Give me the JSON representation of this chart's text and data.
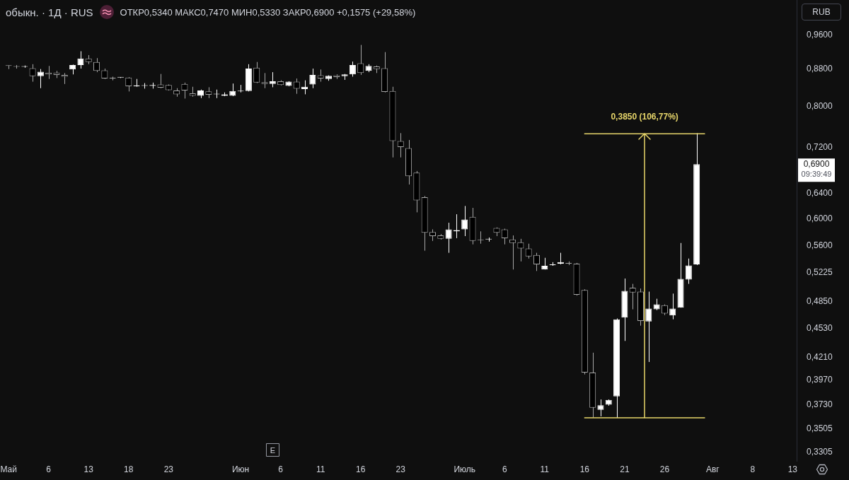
{
  "chart_data": {
    "type": "candlestick",
    "title": "обыкн. · 1Д · RUS",
    "subtitle": "ОТКР0,5340 МАКС0,7470 МИН0,5330 ЗАКР0,6900 +0,1575 (+29,58%)",
    "ylabel": "RUB",
    "categories": [
      "Май",
      null,
      null,
      null,
      null,
      "6",
      null,
      null,
      null,
      null,
      "13",
      null,
      null,
      null,
      null,
      "18",
      null,
      null,
      null,
      null,
      "23",
      null,
      null,
      null,
      null,
      null,
      null,
      null,
      null,
      "Июн",
      null,
      null,
      null,
      null,
      "6",
      null,
      null,
      null,
      null,
      "11",
      null,
      null,
      null,
      null,
      "16",
      null,
      null,
      null,
      null,
      "23",
      null,
      null,
      null,
      null,
      null,
      null,
      null,
      "Июль",
      null,
      null,
      null,
      null,
      "6",
      null,
      null,
      null,
      null,
      "11",
      null,
      null,
      null,
      null,
      "16",
      null,
      null,
      null,
      null,
      "21",
      null,
      null,
      null,
      null,
      "26",
      null,
      null,
      null,
      null,
      null,
      "Авг",
      null,
      null,
      null,
      null,
      "8",
      null,
      null,
      null,
      null,
      "13"
    ],
    "ohlc": [
      [
        0.888,
        0.888,
        0.88,
        0.887
      ],
      [
        0.886,
        0.889,
        0.881,
        0.885
      ],
      [
        0.885,
        0.888,
        0.883,
        0.885
      ],
      [
        0.882,
        0.891,
        0.852,
        0.864
      ],
      [
        0.864,
        0.88,
        0.838,
        0.874
      ],
      [
        0.872,
        0.887,
        0.858,
        0.868
      ],
      [
        0.872,
        0.876,
        0.86,
        0.867
      ],
      [
        0.867,
        0.871,
        0.847,
        0.863
      ],
      [
        0.879,
        0.89,
        0.868,
        0.889
      ],
      [
        0.889,
        0.921,
        0.881,
        0.904
      ],
      [
        0.904,
        0.912,
        0.891,
        0.896
      ],
      [
        0.896,
        0.905,
        0.873,
        0.876
      ],
      [
        0.877,
        0.881,
        0.858,
        0.859
      ],
      [
        0.86,
        0.863,
        0.855,
        0.859
      ],
      [
        0.861,
        0.862,
        0.86,
        0.861
      ],
      [
        0.861,
        0.862,
        0.831,
        0.842
      ],
      [
        0.842,
        0.858,
        0.841,
        0.844
      ],
      [
        0.843,
        0.849,
        0.837,
        0.844
      ],
      [
        0.843,
        0.85,
        0.837,
        0.845
      ],
      [
        0.846,
        0.869,
        0.838,
        0.839
      ],
      [
        0.845,
        0.846,
        0.833,
        0.834
      ],
      [
        0.833,
        0.838,
        0.82,
        0.825
      ],
      [
        0.847,
        0.85,
        0.816,
        0.833
      ],
      [
        0.827,
        0.841,
        0.82,
        0.822
      ],
      [
        0.822,
        0.835,
        0.817,
        0.833
      ],
      [
        0.831,
        0.84,
        0.817,
        0.824
      ],
      [
        0.825,
        0.835,
        0.817,
        0.826
      ],
      [
        0.822,
        0.829,
        0.821,
        0.825
      ],
      [
        0.822,
        0.848,
        0.821,
        0.832
      ],
      [
        0.831,
        0.845,
        0.829,
        0.832
      ],
      [
        0.832,
        0.891,
        0.831,
        0.881
      ],
      [
        0.883,
        0.896,
        0.849,
        0.85
      ],
      [
        0.851,
        0.871,
        0.838,
        0.847
      ],
      [
        0.847,
        0.873,
        0.84,
        0.853
      ],
      [
        0.853,
        0.855,
        0.844,
        0.845
      ],
      [
        0.843,
        0.853,
        0.842,
        0.852
      ],
      [
        0.852,
        0.859,
        0.826,
        0.837
      ],
      [
        0.836,
        0.855,
        0.825,
        0.841
      ],
      [
        0.846,
        0.881,
        0.838,
        0.867
      ],
      [
        0.866,
        0.879,
        0.852,
        0.859
      ],
      [
        0.858,
        0.866,
        0.854,
        0.865
      ],
      [
        0.866,
        0.868,
        0.858,
        0.862
      ],
      [
        0.864,
        0.869,
        0.856,
        0.868
      ],
      [
        0.868,
        0.897,
        0.863,
        0.889
      ],
      [
        0.893,
        0.936,
        0.867,
        0.871
      ],
      [
        0.876,
        0.891,
        0.873,
        0.887
      ],
      [
        0.886,
        0.888,
        0.871,
        0.88
      ],
      [
        0.882,
        0.919,
        0.829,
        0.83
      ],
      [
        0.832,
        0.841,
        0.702,
        0.732
      ],
      [
        0.732,
        0.747,
        0.702,
        0.721
      ],
      [
        0.719,
        0.734,
        0.655,
        0.669
      ],
      [
        0.675,
        0.678,
        0.61,
        0.629
      ],
      [
        0.634,
        0.636,
        0.553,
        0.579
      ],
      [
        0.58,
        0.584,
        0.567,
        0.574
      ],
      [
        0.575,
        0.577,
        0.569,
        0.57
      ],
      [
        0.57,
        0.594,
        0.55,
        0.584
      ],
      [
        0.581,
        0.607,
        0.571,
        0.583
      ],
      [
        0.584,
        0.62,
        0.574,
        0.599
      ],
      [
        0.603,
        0.617,
        0.562,
        0.567
      ],
      [
        0.569,
        0.581,
        0.563,
        0.568
      ],
      [
        0.569,
        0.572,
        0.566,
        0.57
      ],
      [
        0.586,
        0.587,
        0.574,
        0.579
      ],
      [
        0.584,
        0.585,
        0.562,
        0.571
      ],
      [
        0.569,
        0.575,
        0.527,
        0.564
      ],
      [
        0.565,
        0.57,
        0.538,
        0.556
      ],
      [
        0.556,
        0.563,
        0.542,
        0.545
      ],
      [
        0.547,
        0.55,
        0.525,
        0.534
      ],
      [
        0.527,
        0.543,
        0.527,
        0.532
      ],
      [
        0.533,
        0.537,
        0.532,
        0.534
      ],
      [
        0.535,
        0.55,
        0.534,
        0.537
      ],
      [
        0.536,
        0.538,
        0.533,
        0.535
      ],
      [
        0.535,
        0.536,
        0.493,
        0.494
      ],
      [
        0.5,
        0.501,
        0.403,
        0.405
      ],
      [
        0.405,
        0.426,
        0.361,
        0.37
      ],
      [
        0.368,
        0.378,
        0.362,
        0.3725
      ],
      [
        0.373,
        0.378,
        0.372,
        0.3775
      ],
      [
        0.381,
        0.465,
        0.3606,
        0.464
      ],
      [
        0.466,
        0.515,
        0.439,
        0.499
      ],
      [
        0.503,
        0.508,
        0.476,
        0.497
      ],
      [
        0.498,
        0.502,
        0.4565,
        0.462
      ],
      [
        0.4615,
        0.498,
        0.416,
        0.477
      ],
      [
        0.476,
        0.489,
        0.475,
        0.482
      ],
      [
        0.481,
        0.482,
        0.469,
        0.471
      ],
      [
        0.4685,
        0.4955,
        0.464,
        0.477
      ],
      [
        0.478,
        0.564,
        0.478,
        0.5145
      ],
      [
        0.5136,
        0.542,
        0.508,
        0.5325
      ],
      [
        0.534,
        0.747,
        0.533,
        0.69
      ],
      null,
      null,
      null,
      null,
      null,
      null,
      null,
      null,
      null,
      null,
      null,
      null
    ],
    "colors": [
      "#a6a6a6",
      "#a6a6a6",
      "#ffffff",
      "#a6a6a6",
      "#ffffff",
      "#a6a6a6",
      "#a6a6a6",
      "#a6a6a6",
      "#ffffff",
      "#ffffff",
      "#a6a6a6",
      "#a6a6a6",
      "#a6a6a6",
      "#a6a6a6",
      "#ffffff",
      "#a6a6a6",
      "#ffffff",
      "#ffffff",
      "#ffffff",
      "#a6a6a6",
      "#a6a6a6",
      "#a6a6a6",
      "#a6a6a6",
      "#a6a6a6",
      "#ffffff",
      "#a6a6a6",
      "#ffffff",
      "#ffffff",
      "#ffffff",
      "#ffffff",
      "#ffffff",
      "#a6a6a6",
      "#a6a6a6",
      "#ffffff",
      "#a6a6a6",
      "#ffffff",
      "#a6a6a6",
      "#ffffff",
      "#ffffff",
      "#a6a6a6",
      "#ffffff",
      "#a6a6a6",
      "#ffffff",
      "#ffffff",
      "#a6a6a6",
      "#ffffff",
      "#a6a6a6",
      "#a6a6a6",
      "#a6a6a6",
      "#a6a6a6",
      "#a6a6a6",
      "#a6a6a6",
      "#a6a6a6",
      "#a6a6a6",
      "#a6a6a6",
      "#ffffff",
      "#ffffff",
      "#ffffff",
      "#a6a6a6",
      "#a6a6a6",
      "#ffffff",
      "#a6a6a6",
      "#a6a6a6",
      "#a6a6a6",
      "#a6a6a6",
      "#a6a6a6",
      "#a6a6a6",
      "#ffffff",
      "#ffffff",
      "#ffffff",
      "#a6a6a6",
      "#a6a6a6",
      "#a6a6a6",
      "#a6a6a6",
      "#ffffff",
      "#ffffff",
      "#ffffff",
      "#ffffff",
      "#a6a6a6",
      "#a6a6a6",
      "#ffffff",
      "#ffffff",
      "#a6a6a6",
      "#ffffff",
      "#ffffff",
      "#ffffff",
      "#ffffff",
      null,
      null,
      null,
      null,
      null,
      null,
      null,
      null,
      null,
      null,
      null,
      null
    ],
    "log": true,
    "ylim": [
      0.323,
      1.05
    ],
    "yticks": [
      {
        "value": 0.3305,
        "label": "0,3305"
      },
      {
        "value": 0.3505,
        "label": "0,3505"
      },
      {
        "value": 0.373,
        "label": "0,3730"
      },
      {
        "value": 0.397,
        "label": "0,3970"
      },
      {
        "value": 0.421,
        "label": "0,4210"
      },
      {
        "value": 0.453,
        "label": "0,4530"
      },
      {
        "value": 0.485,
        "label": "0,4850"
      },
      {
        "value": 0.5225,
        "label": "0,5225"
      },
      {
        "value": 0.56,
        "label": "0,5600"
      },
      {
        "value": 0.6,
        "label": "0,6000"
      },
      {
        "value": 0.64,
        "label": "0,6400"
      },
      {
        "value": 0.72,
        "label": "0,7200"
      },
      {
        "value": 0.8,
        "label": "0,8000"
      },
      {
        "value": 0.88,
        "label": "0,8800"
      },
      {
        "value": 0.96,
        "label": "0,9600"
      }
    ],
    "ref_lines": [
      {
        "axis": "y",
        "value": 0.3606,
        "color": "#e6d56a"
      },
      {
        "axis": "y",
        "value": 0.7456,
        "color": "#e6d56a"
      }
    ],
    "annotations": [
      {
        "text": "0,3850 (106,77%)",
        "y": 0.7456
      },
      "0,6900",
      "09:39:49",
      "E"
    ]
  }
}
